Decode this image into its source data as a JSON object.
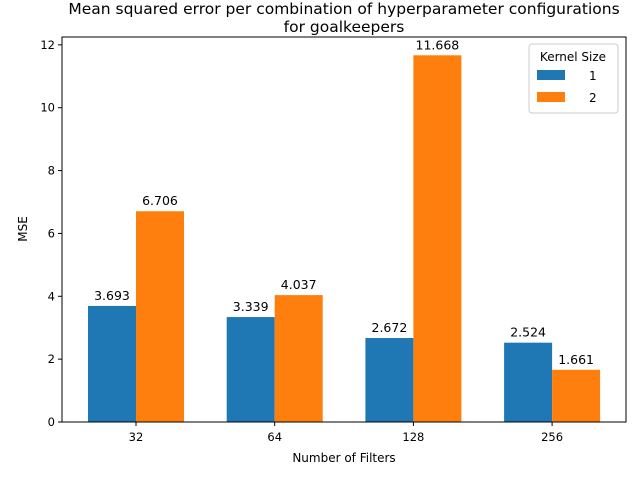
{
  "chart_data": {
    "type": "bar",
    "title_line1": "Mean squared error per combination of hyperparameter configurations",
    "title_line2": "for goalkeepers",
    "xlabel": "Number of Filters",
    "ylabel": "MSE",
    "categories": [
      "32",
      "64",
      "128",
      "256"
    ],
    "series": [
      {
        "name": "1",
        "color": "#1f77b4",
        "values": [
          3.693,
          3.339,
          2.672,
          2.524
        ]
      },
      {
        "name": "2",
        "color": "#ff7f0e",
        "values": [
          6.706,
          4.037,
          11.668,
          1.661
        ]
      }
    ],
    "value_labels": [
      [
        "3.693",
        "3.339",
        "2.672",
        "2.524"
      ],
      [
        "6.706",
        "4.037",
        "11.668",
        "1.661"
      ]
    ],
    "yticks": [
      "0",
      "2",
      "4",
      "6",
      "8",
      "10",
      "12"
    ],
    "ylim": [
      0,
      12.25
    ],
    "grid": false,
    "legend": {
      "title": "Kernel Size",
      "placement": "top-right"
    }
  }
}
